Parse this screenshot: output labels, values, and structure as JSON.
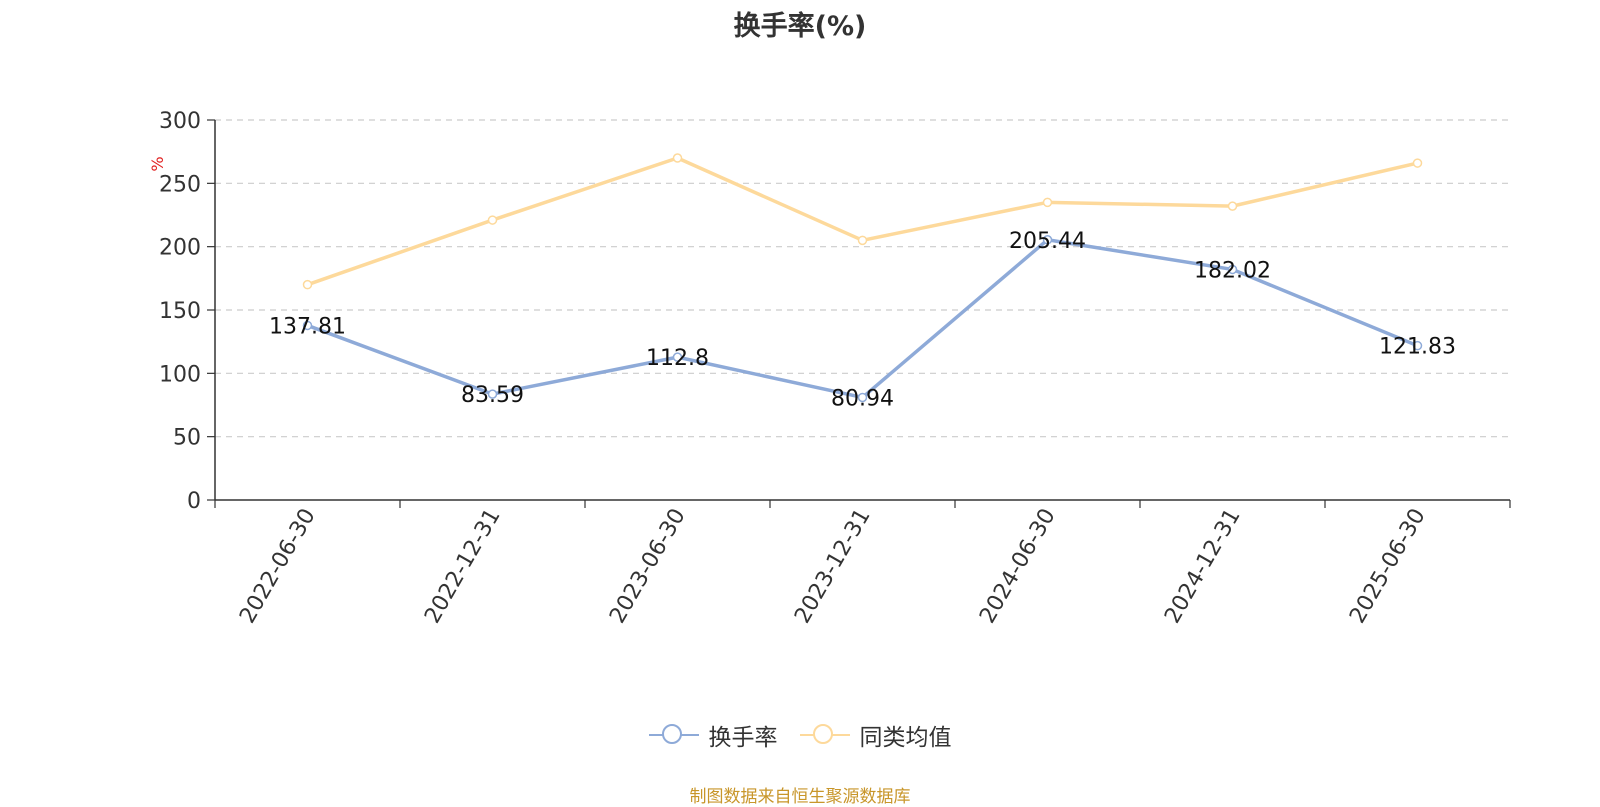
{
  "source_note": "制图数据来自恒生聚源数据库",
  "chart_data": {
    "type": "line",
    "title": "换手率(%)",
    "ylabel": "%",
    "ylim": [
      0,
      300
    ],
    "yticks": [
      0,
      50,
      100,
      150,
      200,
      250,
      300
    ],
    "grid": true,
    "legend_position": "bottom-center",
    "categories": [
      "2022-06-30",
      "2022-12-31",
      "2023-06-30",
      "2023-12-31",
      "2024-06-30",
      "2024-12-31",
      "2025-06-30"
    ],
    "series": [
      {
        "name": "换手率",
        "color": "#8eaad8",
        "show_labels": true,
        "values": [
          137.81,
          83.59,
          112.8,
          80.94,
          205.44,
          182.02,
          121.83
        ]
      },
      {
        "name": "同类均值",
        "color": "#fdd99b",
        "show_labels": false,
        "values": [
          170,
          221,
          270,
          205,
          235,
          232,
          266
        ]
      }
    ]
  }
}
